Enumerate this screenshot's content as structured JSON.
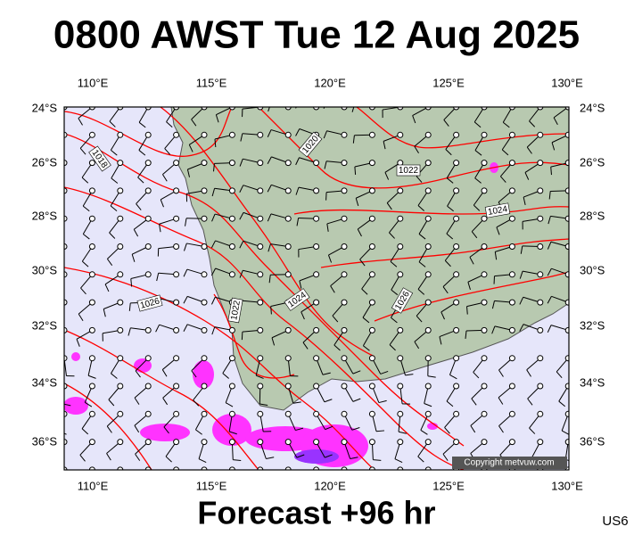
{
  "header": {
    "title": "0800 AWST Tue 12 Aug 2025"
  },
  "map": {
    "lon_labels": [
      "110°E",
      "115°E",
      "120°E",
      "125°E",
      "130°E"
    ],
    "lat_labels": [
      "24°S",
      "26°S",
      "28°S",
      "30°S",
      "32°S",
      "34°S",
      "36°S"
    ],
    "contour_labels": [
      "1018",
      "1020",
      "1022",
      "1024",
      "1026",
      "1022",
      "1024",
      "1026"
    ],
    "copyright": "Copyright metvuw.com"
  },
  "footer": {
    "forecast": "Forecast +96 hr",
    "code": "US6"
  }
}
